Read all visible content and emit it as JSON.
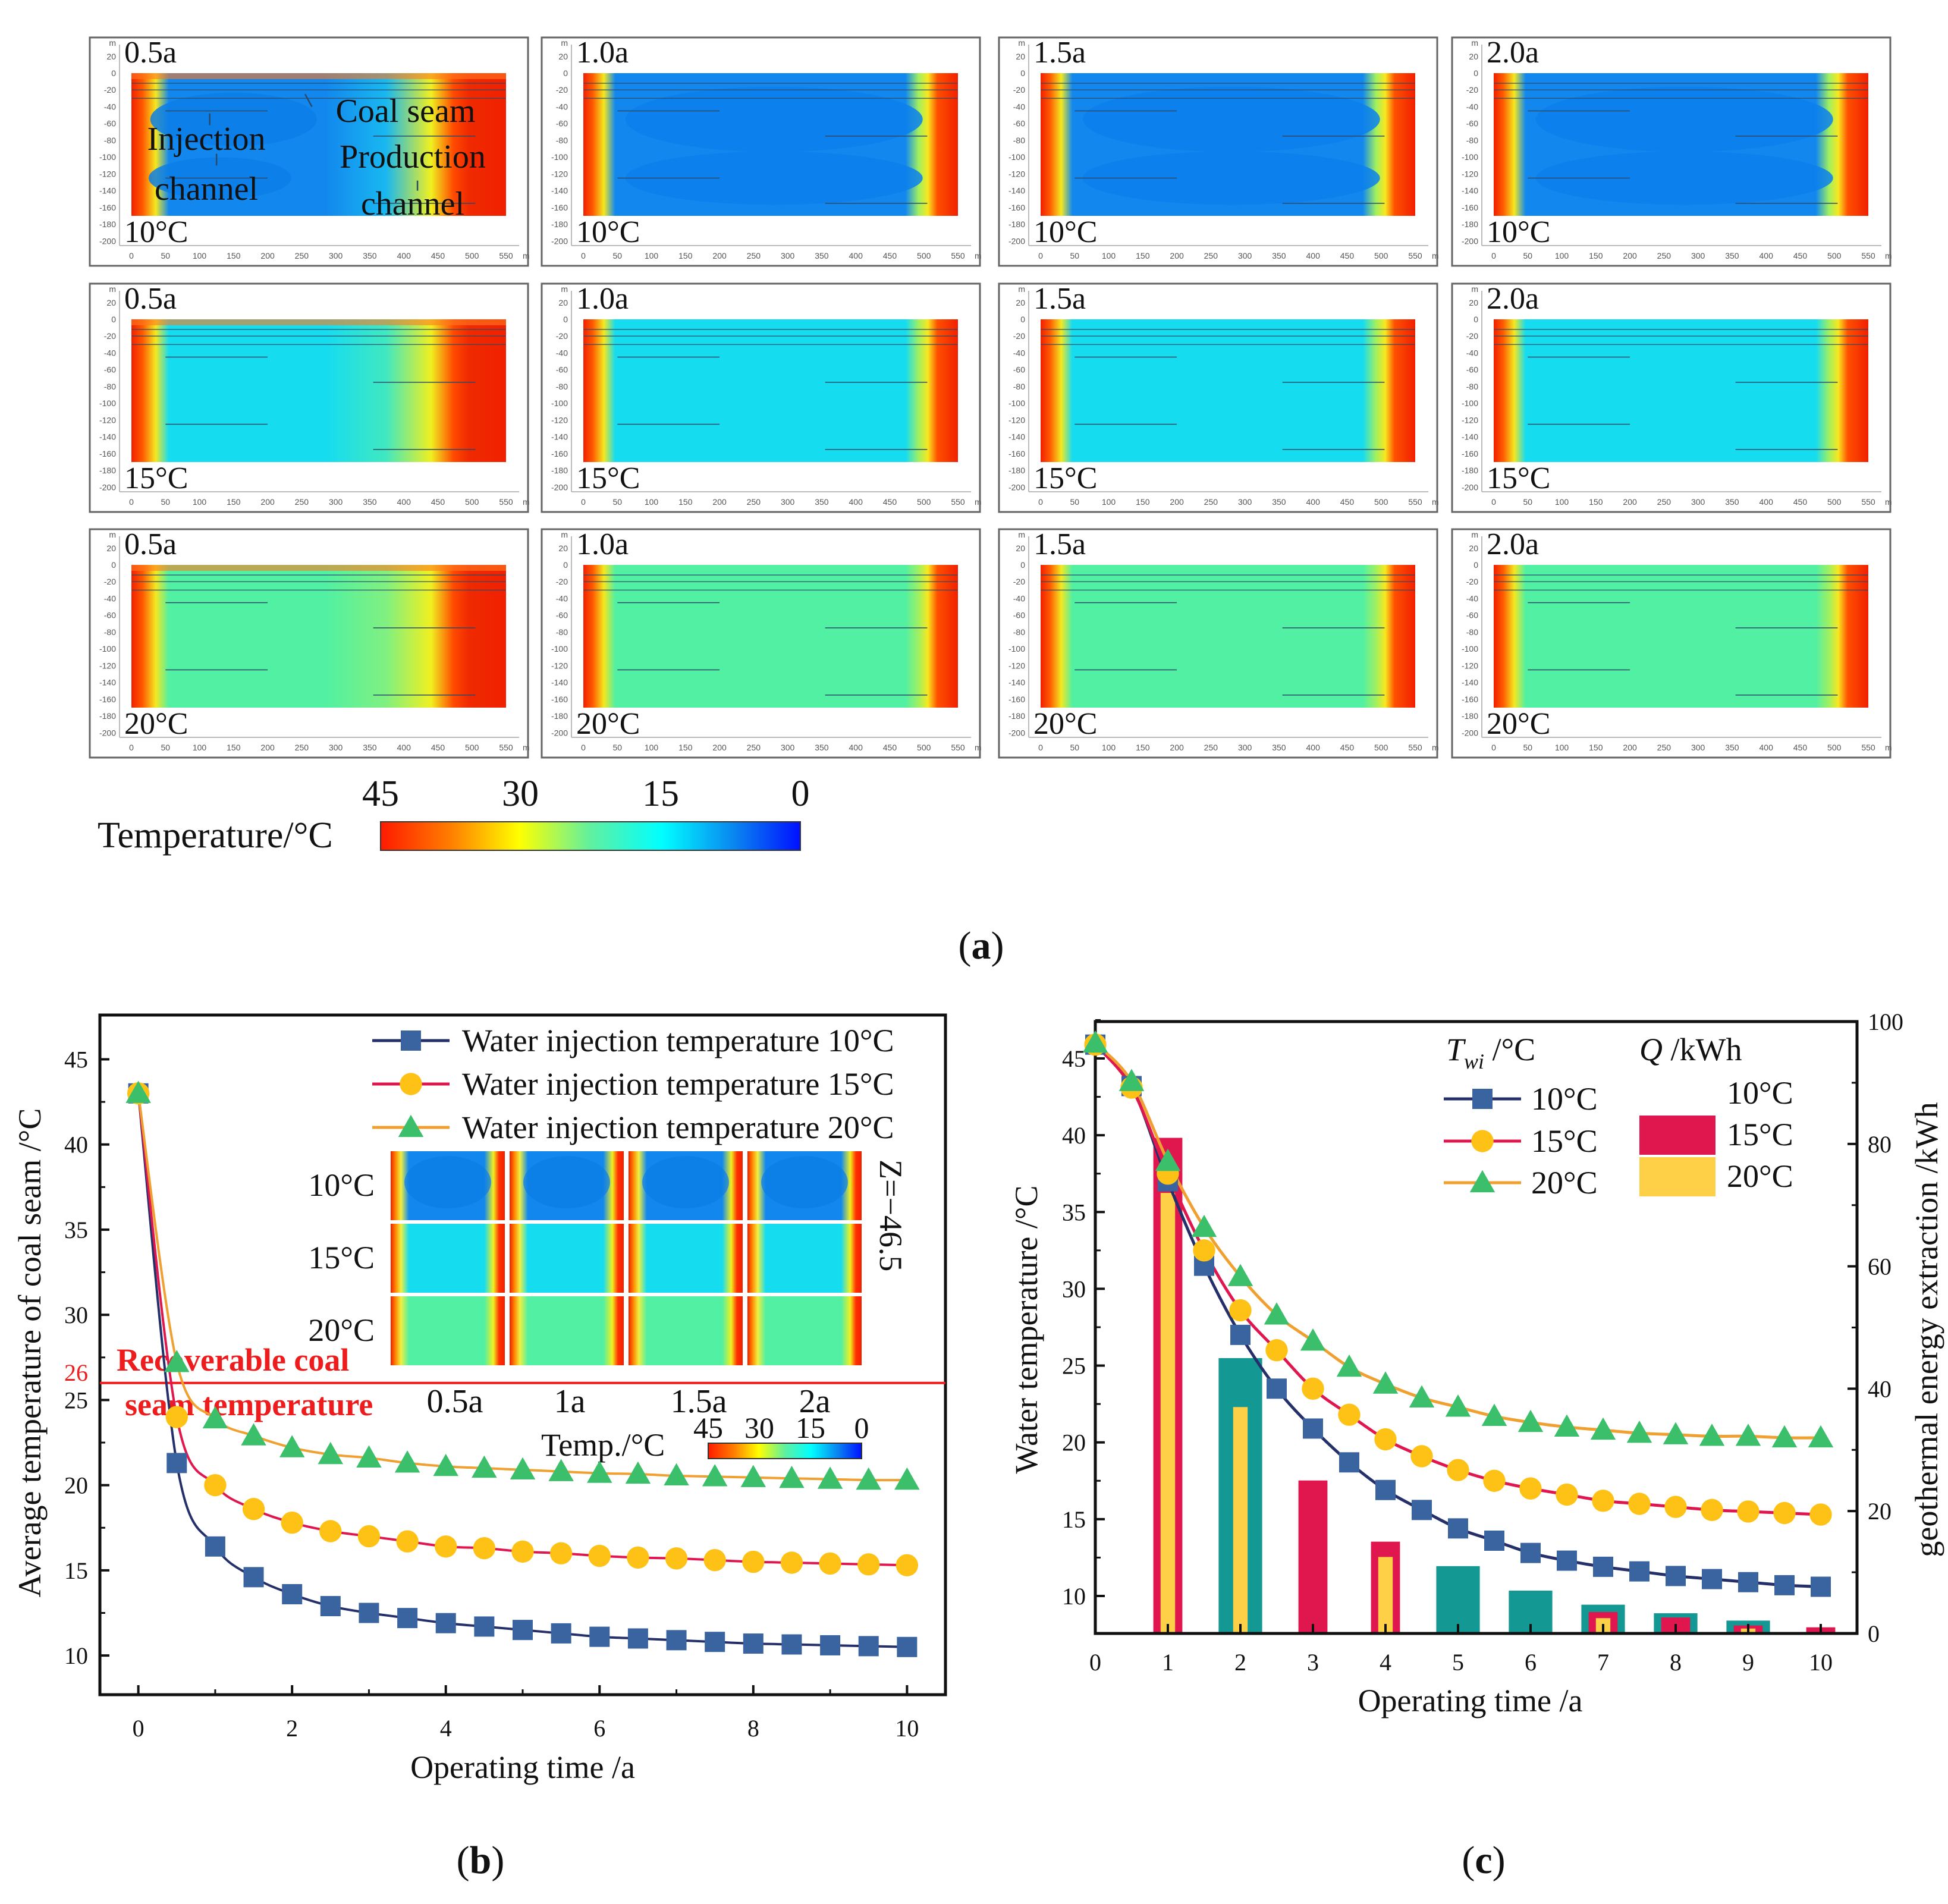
{
  "figure": {
    "label_a": "a",
    "label_b": "b",
    "label_c": "c"
  },
  "panel_a": {
    "time_labels": [
      "0.5a",
      "1.0a",
      "1.5a",
      "2.0a"
    ],
    "temp_labels": [
      "10°C",
      "15°C",
      "20°C"
    ],
    "y_ticks": [
      "20",
      "0",
      "-20",
      "-40",
      "-60",
      "-80",
      "-100",
      "-120",
      "-140",
      "-160",
      "-180",
      "-200"
    ],
    "x_ticks": [
      "0",
      "50",
      "100",
      "150",
      "200",
      "250",
      "300",
      "350",
      "400",
      "450",
      "500",
      "550"
    ],
    "unit": "m",
    "annotations": {
      "coal_seam": "Coal seam",
      "injection_1": "Injection",
      "injection_2": "channel",
      "production_1": "Production",
      "production_2": "channel"
    },
    "base_colors": {
      "10°C": "#1288ee",
      "15°C": "#16dcf0",
      "20°C": "#52f0a2"
    },
    "colorbar": {
      "title": "Temperature/°C",
      "ticks": [
        "45",
        "30",
        "15",
        "0"
      ],
      "colors": [
        "#ff1a00",
        "#ffff00",
        "#00ffff",
        "#0010ff"
      ]
    }
  },
  "chart_data": [
    {
      "type": "line",
      "xlabel": "Operating time /a",
      "ylabel": "Average temperature of coal seam /°C",
      "xlim": [
        -0.5,
        10.5
      ],
      "ylim": [
        7.7,
        47.6
      ],
      "xticks": [
        "0",
        "2",
        "4",
        "6",
        "8",
        "10"
      ],
      "yticks": [
        "10",
        "15",
        "20",
        "25",
        "30",
        "35",
        "40",
        "45"
      ],
      "legend": "top-right",
      "x": [
        0,
        0.5,
        1,
        1.5,
        2,
        2.5,
        3,
        3.5,
        4,
        4.5,
        5,
        5.5,
        6,
        6.5,
        7,
        7.5,
        8,
        8.5,
        9,
        9.5,
        10
      ],
      "series": [
        {
          "name": "Water injection temperature 10°C",
          "marker": "square",
          "line_color": "#25306a",
          "marker_color": "#3a64a0",
          "values": [
            43.0,
            21.3,
            16.4,
            14.6,
            13.6,
            12.9,
            12.5,
            12.2,
            11.9,
            11.7,
            11.5,
            11.3,
            11.1,
            11.0,
            10.9,
            10.8,
            10.7,
            10.65,
            10.6,
            10.55,
            10.5
          ]
        },
        {
          "name": "Water injection temperature 15°C",
          "marker": "circle",
          "line_color": "#e0174f",
          "marker_color": "#fdc215",
          "values": [
            43.0,
            24.0,
            20.0,
            18.6,
            17.8,
            17.3,
            17.0,
            16.7,
            16.4,
            16.3,
            16.1,
            16.0,
            15.85,
            15.75,
            15.7,
            15.6,
            15.5,
            15.45,
            15.4,
            15.35,
            15.3
          ]
        },
        {
          "name": "Water injection temperature 20°C",
          "marker": "triangle",
          "line_color": "#f0a030",
          "marker_color": "#3cbf6a",
          "values": [
            43.0,
            27.2,
            23.9,
            22.9,
            22.2,
            21.8,
            21.6,
            21.3,
            21.1,
            21.0,
            20.9,
            20.8,
            20.7,
            20.65,
            20.55,
            20.5,
            20.45,
            20.4,
            20.35,
            20.3,
            20.3
          ]
        }
      ],
      "reference_line": {
        "y": 26,
        "label": "26",
        "text": [
          "Recoverable coal",
          "seam temperature"
        ],
        "color": "#ee1c1c"
      },
      "inset": {
        "row_labels": [
          "10°C",
          "15°C",
          "20°C"
        ],
        "col_labels": [
          "0.5a",
          "1a",
          "1.5a",
          "2a"
        ],
        "z_label": "Z=−46.5",
        "colorbar_title": "Temp./°C",
        "colorbar_ticks": [
          "45",
          "30",
          "15",
          "0"
        ]
      }
    },
    {
      "type": "bar+line",
      "xlabel": "Operating time /a",
      "ylabel": "Water temperature /°C",
      "y2label": "geothermal energy extraction /kWh",
      "xlim": [
        0,
        10.5
      ],
      "ylim": [
        7.56,
        47.4
      ],
      "y2lim": [
        0,
        100
      ],
      "xticks": [
        "0",
        "1",
        "2",
        "3",
        "4",
        "5",
        "6",
        "7",
        "8",
        "9",
        "10"
      ],
      "yticks": [
        "10",
        "15",
        "20",
        "25",
        "30",
        "35",
        "40",
        "45"
      ],
      "y2ticks": [
        "0",
        "20",
        "40",
        "60",
        "80",
        "100"
      ],
      "legend": "top-right",
      "legend_line_title": {
        "symbol": "T",
        "subscript": "wi",
        "unit": " /°C"
      },
      "legend_bar_title": {
        "symbol": "Q",
        "unit": " /kWh"
      },
      "x": [
        0,
        0.5,
        1,
        1.5,
        2,
        2.5,
        3,
        3.5,
        4,
        4.5,
        5,
        5.5,
        6,
        6.5,
        7,
        7.5,
        8,
        8.5,
        9,
        9.5,
        10
      ],
      "series": [
        {
          "name": "10°C",
          "marker": "square",
          "line_color": "#25306a",
          "marker_color": "#3a64a0",
          "values": [
            45.9,
            43.2,
            37.0,
            31.5,
            27.0,
            23.5,
            20.9,
            18.7,
            16.9,
            15.6,
            14.4,
            13.6,
            12.8,
            12.3,
            11.9,
            11.6,
            11.3,
            11.1,
            10.9,
            10.7,
            10.6
          ]
        },
        {
          "name": "15°C",
          "marker": "circle",
          "line_color": "#e0174f",
          "marker_color": "#fdc215",
          "values": [
            45.9,
            43.1,
            37.5,
            32.5,
            28.6,
            26.0,
            23.5,
            21.8,
            20.2,
            19.1,
            18.2,
            17.5,
            17.0,
            16.6,
            16.2,
            16.0,
            15.8,
            15.6,
            15.5,
            15.4,
            15.3
          ]
        },
        {
          "name": "20°C",
          "marker": "triangle",
          "line_color": "#f0a030",
          "marker_color": "#3cbf6a",
          "values": [
            46.0,
            43.5,
            38.3,
            34.0,
            30.8,
            28.3,
            26.6,
            24.9,
            23.8,
            22.9,
            22.3,
            21.7,
            21.3,
            21.0,
            20.8,
            20.6,
            20.5,
            20.4,
            20.4,
            20.3,
            20.3
          ]
        }
      ],
      "bars": {
        "categories": [
          1,
          2,
          3,
          4,
          5,
          6,
          7,
          8,
          9,
          10
        ],
        "series": [
          {
            "name": "10°C",
            "color": "#139894",
            "values": [
              null,
              45,
              null,
              null,
              11,
              7,
              4.7,
              3.3,
              2.1,
              null
            ]
          },
          {
            "name": "15°C",
            "color": "#e0174f",
            "values": [
              81,
              null,
              25,
              15,
              null,
              null,
              3.5,
              2.6,
              1.3,
              1.0
            ]
          },
          {
            "name": "20°C",
            "color": "#fdd048",
            "values": [
              72,
              37,
              null,
              12.5,
              null,
              null,
              2.5,
              null,
              0.8,
              null
            ]
          }
        ]
      }
    }
  ]
}
